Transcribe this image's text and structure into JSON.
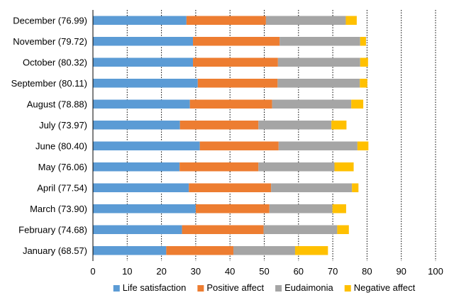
{
  "chart_data": {
    "type": "bar",
    "orientation": "horizontal",
    "stacked": true,
    "categories": [
      "December (76.99)",
      "November (79.72)",
      "October (80.32)",
      "September (80.11)",
      "August (78.88)",
      "July (73.97)",
      "June (80.40)",
      "May (76.06)",
      "April (77.54)",
      "March (73.90)",
      "February (74.68)",
      "January (68.57)"
    ],
    "series": [
      {
        "name": "Life satisfaction",
        "color": "#5B9BD5",
        "values": [
          27.3,
          29.2,
          29.2,
          30.6,
          28.3,
          25.4,
          31.2,
          25.3,
          28.0,
          30.0,
          26.0,
          21.4
        ]
      },
      {
        "name": "Positive affect",
        "color": "#ED7D31",
        "values": [
          23.2,
          25.3,
          24.8,
          23.3,
          24.0,
          22.9,
          23.0,
          23.0,
          24.0,
          21.5,
          23.8,
          19.6
        ]
      },
      {
        "name": "Eudaimonia",
        "color": "#A5A5A5",
        "values": [
          23.3,
          23.5,
          24.0,
          24.0,
          23.1,
          21.3,
          23.0,
          22.2,
          23.6,
          18.4,
          21.5,
          18.0
        ]
      },
      {
        "name": "Negative affect",
        "color": "#FFC000",
        "values": [
          3.2,
          1.7,
          2.3,
          2.2,
          3.5,
          4.4,
          3.2,
          5.6,
          1.9,
          4.0,
          3.4,
          9.6
        ]
      }
    ],
    "xlim": [
      0,
      100
    ],
    "xticks": [
      0,
      10,
      20,
      30,
      40,
      50,
      60,
      70,
      80,
      90,
      100
    ],
    "grid": "vertical dotted",
    "legend_position": "bottom"
  }
}
